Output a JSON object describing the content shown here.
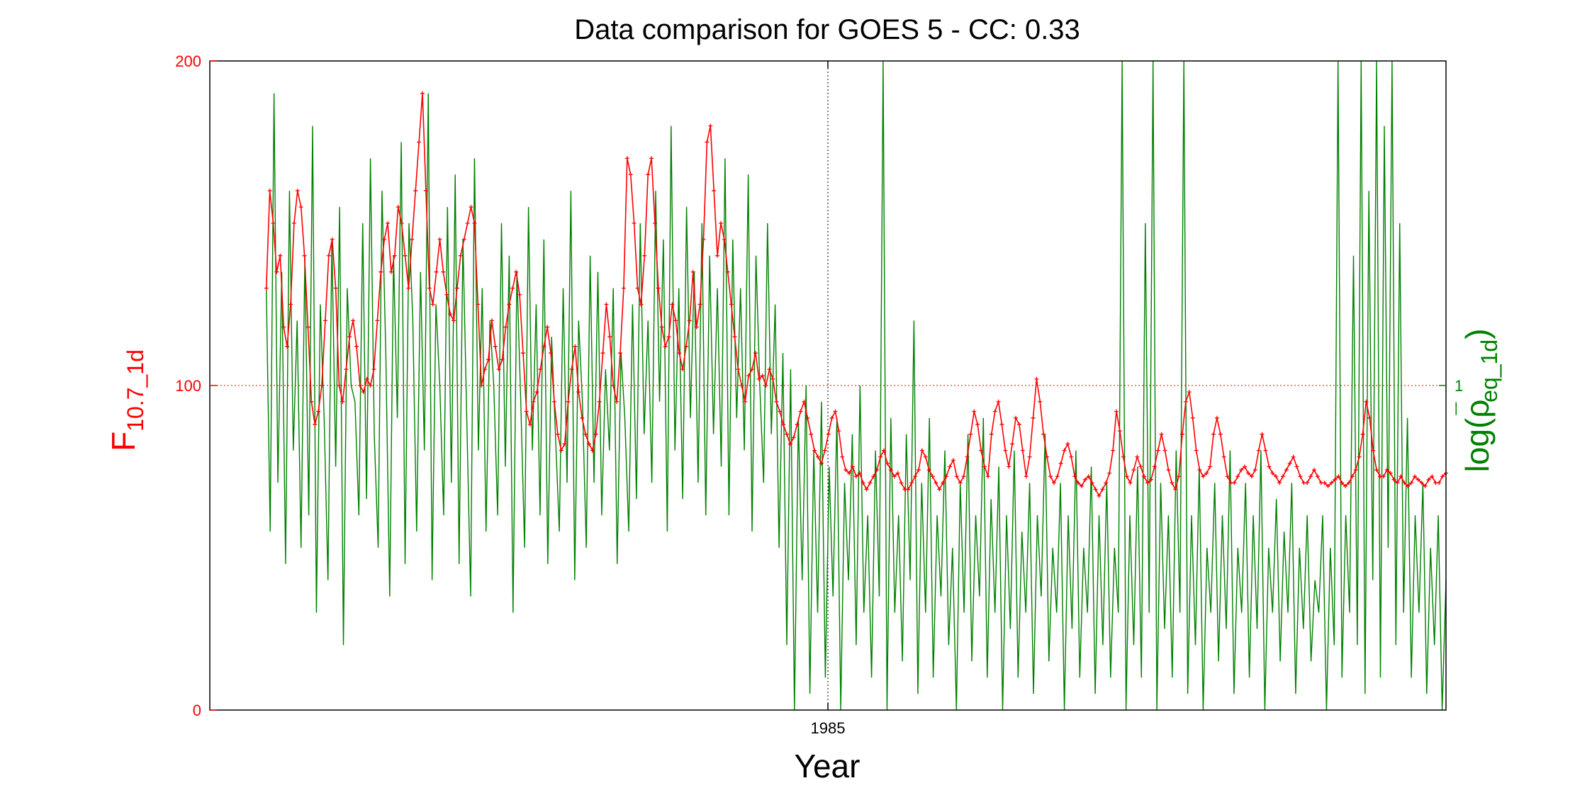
{
  "chart_data": {
    "type": "line",
    "title": "Data comparison for GOES 5 - CC: 0.33",
    "xlabel": "Year",
    "ylabel_left": {
      "main": "F",
      "sub": "10.7_1d"
    },
    "ylabel_right": {
      "pre": "log(",
      "rho": "ρ",
      "bar": "¯",
      "sub": "eq_1d",
      "post": ")"
    },
    "x_range": [
      1983.25,
      1986.75
    ],
    "x_ticks": [
      {
        "value": 1985,
        "label": "1985"
      }
    ],
    "y_left_range": [
      0,
      200
    ],
    "y_left_ticks": [
      {
        "value": 0,
        "label": "0"
      },
      {
        "value": 100,
        "label": "100"
      },
      {
        "value": 200,
        "label": "200"
      }
    ],
    "y_right_range": [
      0,
      2
    ],
    "y_right_ticks": [
      {
        "value": 1,
        "label": "1"
      }
    ],
    "reference_lines": {
      "x": 1985,
      "y_left": 100
    },
    "grid": false,
    "legend": "none",
    "colors": {
      "left": "#ff0000",
      "right": "#008000",
      "axes": "#000000"
    },
    "series": [
      {
        "axis": "left",
        "color": "#ff0000",
        "marker": "+",
        "x_start": 1983.41,
        "x_end": 1986.75,
        "values": [
          130,
          160,
          150,
          135,
          140,
          118,
          112,
          125,
          150,
          160,
          155,
          140,
          118,
          95,
          88,
          92,
          100,
          120,
          140,
          145,
          130,
          100,
          95,
          105,
          115,
          120,
          112,
          100,
          98,
          102,
          100,
          105,
          120,
          135,
          145,
          150,
          135,
          140,
          155,
          150,
          140,
          130,
          145,
          160,
          175,
          190,
          160,
          130,
          125,
          135,
          145,
          135,
          128,
          122,
          120,
          130,
          140,
          145,
          150,
          155,
          150,
          125,
          100,
          105,
          108,
          120,
          112,
          105,
          108,
          118,
          125,
          130,
          135,
          128,
          110,
          92,
          88,
          95,
          98,
          105,
          112,
          118,
          110,
          95,
          85,
          80,
          82,
          95,
          105,
          112,
          98,
          90,
          85,
          82,
          80,
          85,
          95,
          110,
          125,
          115,
          100,
          95,
          110,
          130,
          170,
          165,
          150,
          130,
          125,
          140,
          165,
          170,
          150,
          130,
          118,
          112,
          115,
          125,
          120,
          110,
          105,
          112,
          120,
          135,
          118,
          125,
          145,
          175,
          180,
          160,
          140,
          150,
          145,
          135,
          125,
          115,
          105,
          100,
          95,
          103,
          105,
          110,
          102,
          103,
          100,
          105,
          102,
          95,
          92,
          88,
          85,
          82,
          84,
          88,
          92,
          95,
          90,
          85,
          80,
          78,
          76,
          80,
          85,
          90,
          92,
          86,
          78,
          74,
          73,
          75,
          72,
          73,
          70,
          68,
          70,
          72,
          74,
          78,
          80,
          76,
          74,
          72,
          73,
          70,
          68,
          68,
          70,
          72,
          74,
          80,
          78,
          74,
          72,
          70,
          68,
          70,
          72,
          75,
          77,
          72,
          70,
          72,
          78,
          85,
          92,
          88,
          80,
          75,
          72,
          85,
          92,
          95,
          88,
          80,
          75,
          82,
          90,
          88,
          80,
          72,
          78,
          90,
          102,
          95,
          85,
          78,
          72,
          70,
          72,
          76,
          80,
          82,
          78,
          72,
          70,
          69,
          71,
          72,
          70,
          68,
          66,
          68,
          70,
          73,
          80,
          92,
          86,
          78,
          72,
          70,
          74,
          78,
          75,
          72,
          70,
          71,
          75,
          80,
          85,
          80,
          74,
          70,
          68,
          72,
          85,
          95,
          98,
          90,
          80,
          74,
          72,
          73,
          75,
          85,
          90,
          85,
          78,
          72,
          70,
          70,
          72,
          74,
          75,
          73,
          72,
          74,
          80,
          85,
          80,
          75,
          73,
          72,
          70,
          72,
          74,
          76,
          78,
          75,
          72,
          70,
          70,
          72,
          74,
          72,
          70,
          70,
          69,
          70,
          71,
          72,
          70,
          69,
          70,
          72,
          74,
          78,
          85,
          95,
          90,
          80,
          74,
          72,
          72,
          74,
          73,
          71,
          70,
          72,
          70,
          69,
          70,
          72,
          71,
          70,
          69,
          71,
          72,
          70,
          70,
          72,
          73
        ]
      },
      {
        "axis": "right",
        "color": "#008000",
        "marker": "none",
        "x_start": 1983.41,
        "x_end": 1986.75,
        "values": [
          1.3,
          0.55,
          1.9,
          0.7,
          1.35,
          0.45,
          1.6,
          0.8,
          1.2,
          0.5,
          1.4,
          0.6,
          1.8,
          0.3,
          1.25,
          0.9,
          0.4,
          1.45,
          0.75,
          1.55,
          0.2,
          1.3,
          1.0,
          0.95,
          0.6,
          1.5,
          0.65,
          1.7,
          0.85,
          0.5,
          1.6,
          1.1,
          0.35,
          1.4,
          0.9,
          1.75,
          0.45,
          1.5,
          1.2,
          0.55,
          1.35,
          0.8,
          1.9,
          0.4,
          1.25,
          1.0,
          0.6,
          1.55,
          0.7,
          1.65,
          0.45,
          1.45,
          0.9,
          0.35,
          1.7,
          0.8,
          1.3,
          0.55,
          1.2,
          1.0,
          0.6,
          1.5,
          0.75,
          1.4,
          0.3,
          1.35,
          0.95,
          0.5,
          1.55,
          0.8,
          1.25,
          0.6,
          1.45,
          0.45,
          1.15,
          0.85,
          0.55,
          1.3,
          0.7,
          1.6,
          0.4,
          1.2,
          0.95,
          0.5,
          1.4,
          0.7,
          1.35,
          0.6,
          1.05,
          0.8,
          1.3,
          0.45,
          1.1,
          0.9,
          0.55,
          1.25,
          0.65,
          1.5,
          0.85,
          1.2,
          0.7,
          1.6,
          0.95,
          1.45,
          0.55,
          1.8,
          0.8,
          1.3,
          0.65,
          1.55,
          0.9,
          1.35,
          0.7,
          1.5,
          0.6,
          1.4,
          0.85,
          1.3,
          0.75,
          1.7,
          0.6,
          1.45,
          0.9,
          1.3,
          0.8,
          1.65,
          0.55,
          1.4,
          1.0,
          0.7,
          1.5,
          0.85,
          1.25,
          0.5,
          1.1,
          0.2,
          1.05,
          0.0,
          0.9,
          0.4,
          1.0,
          0.05,
          0.8,
          0.3,
          0.95,
          0.1,
          0.75,
          0.35,
          0.9,
          0.0,
          0.7,
          0.4,
          0.85,
          0.2,
          1.0,
          0.3,
          0.6,
          0.1,
          0.8,
          0.35,
          2.0,
          0.0,
          0.9,
          0.3,
          0.6,
          0.15,
          0.85,
          0.4,
          1.2,
          0.05,
          0.7,
          0.3,
          0.9,
          0.1,
          0.6,
          0.35,
          0.8,
          0.2,
          0.5,
          0.0,
          0.7,
          0.3,
          0.85,
          0.15,
          0.6,
          0.35,
          0.9,
          0.1,
          0.65,
          0.3,
          0.75,
          0.0,
          0.6,
          0.25,
          0.8,
          0.1,
          0.55,
          0.3,
          0.7,
          0.05,
          0.6,
          0.35,
          0.85,
          0.15,
          0.5,
          0.3,
          0.7,
          0.0,
          0.6,
          0.25,
          0.8,
          0.1,
          0.5,
          0.3,
          0.75,
          0.05,
          0.6,
          0.2,
          0.7,
          0.1,
          0.5,
          0.3,
          2.0,
          0.0,
          0.6,
          0.2,
          0.75,
          0.1,
          1.5,
          0.3,
          2.0,
          0.0,
          0.7,
          0.25,
          0.6,
          0.1,
          0.8,
          0.3,
          2.0,
          0.05,
          0.6,
          0.2,
          0.75,
          0.0,
          0.5,
          0.3,
          0.7,
          0.15,
          0.6,
          0.25,
          0.8,
          0.05,
          0.5,
          0.3,
          0.7,
          0.1,
          0.6,
          0.25,
          0.8,
          0.0,
          0.5,
          0.3,
          0.65,
          0.15,
          0.55,
          0.3,
          0.7,
          0.05,
          0.5,
          0.25,
          0.6,
          0.15,
          0.4,
          0.3,
          0.6,
          0.0,
          0.5,
          0.2,
          2.0,
          0.1,
          0.6,
          0.3,
          1.4,
          0.2,
          2.0,
          0.05,
          1.6,
          0.4,
          2.0,
          0.1,
          1.8,
          0.5,
          2.0,
          0.2,
          1.5,
          0.3,
          0.9,
          0.1,
          0.6,
          0.3,
          0.7,
          0.05,
          0.5,
          0.2,
          0.6,
          0.0,
          0.4
        ]
      }
    ]
  }
}
